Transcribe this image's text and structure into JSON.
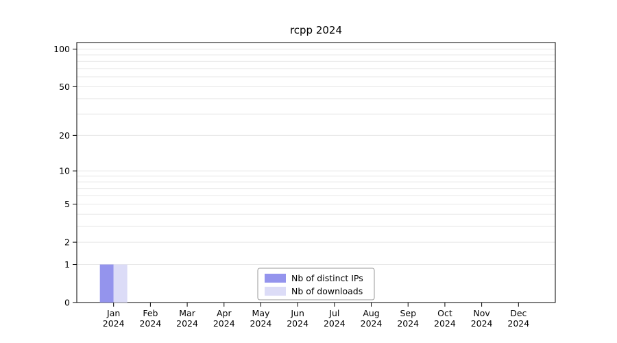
{
  "chart_data": {
    "type": "bar",
    "title": "rcpp 2024",
    "categories": [
      "Jan",
      "Feb",
      "Mar",
      "Apr",
      "May",
      "Jun",
      "Jul",
      "Aug",
      "Sep",
      "Oct",
      "Nov",
      "Dec"
    ],
    "year_label": "2024",
    "series": [
      {
        "name": "Nb of distinct IPs",
        "color": "#9494ed",
        "values": [
          1,
          0,
          0,
          0,
          0,
          0,
          0,
          0,
          0,
          0,
          0,
          0
        ]
      },
      {
        "name": "Nb of downloads",
        "color": "#dcdcf7",
        "values": [
          1,
          0,
          0,
          0,
          0,
          0,
          0,
          0,
          0,
          0,
          0,
          0
        ]
      }
    ],
    "y_ticks": [
      0,
      1,
      2,
      5,
      10,
      20,
      50,
      100
    ],
    "y_gridlines": [
      1,
      2,
      3,
      4,
      5,
      6,
      7,
      8,
      9,
      10,
      20,
      30,
      40,
      50,
      60,
      70,
      80,
      90,
      100
    ],
    "y_scale": "log1p",
    "ylim": [
      0,
      113
    ],
    "grid": true,
    "legend": {
      "position": "bottom-center",
      "entries": [
        "Nb of distinct IPs",
        "Nb of downloads"
      ]
    },
    "colors": {
      "grid": "#e7e7e7",
      "axis": "#000000",
      "legend_border": "#9a9a9a"
    }
  }
}
